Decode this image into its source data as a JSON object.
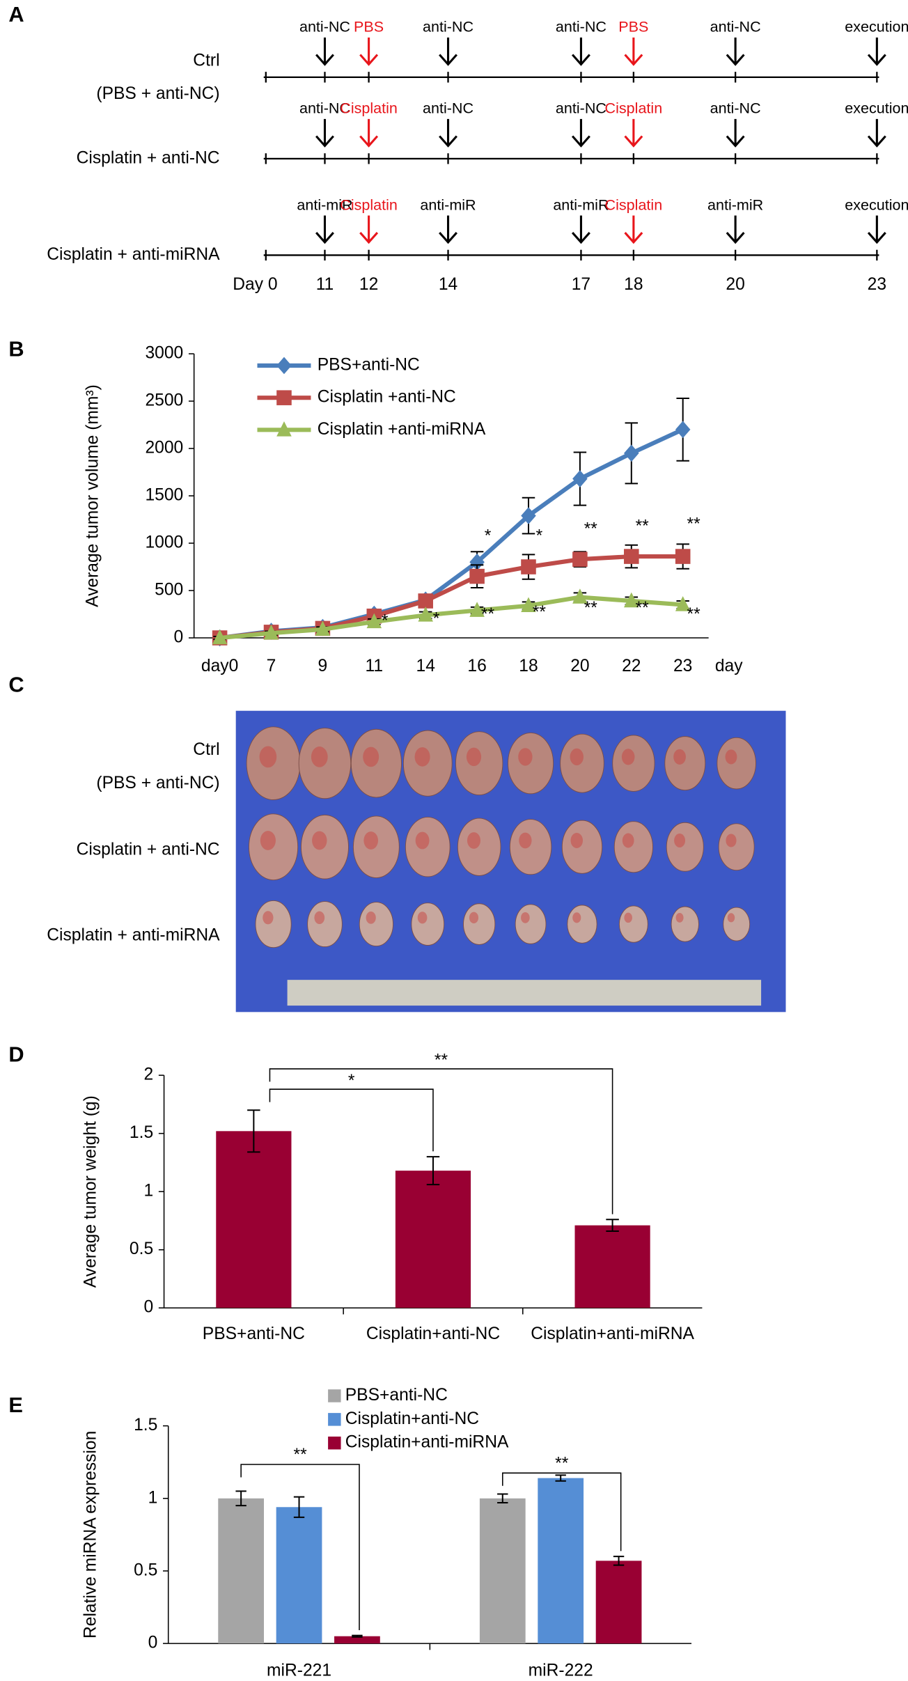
{
  "panel_labels": [
    "A",
    "B",
    "C",
    "D",
    "E"
  ],
  "timeline": {
    "rows": [
      {
        "label": [
          "Ctrl",
          "(PBS + anti-NC)"
        ],
        "events": [
          {
            "text": "anti-NC",
            "color": "#000000"
          },
          {
            "text": "PBS",
            "color": "#e8151b"
          },
          {
            "text": "anti-NC",
            "color": "#000000"
          },
          {
            "text": "anti-NC",
            "color": "#000000"
          },
          {
            "text": "PBS",
            "color": "#e8151b"
          },
          {
            "text": "anti-NC",
            "color": "#000000"
          },
          {
            "text": "execution",
            "color": "#000000"
          }
        ]
      },
      {
        "label": [
          "Cisplatin + anti-NC"
        ],
        "events": [
          {
            "text": "anti-NC",
            "color": "#000000"
          },
          {
            "text": "Cisplatin",
            "color": "#e8151b"
          },
          {
            "text": "anti-NC",
            "color": "#000000"
          },
          {
            "text": "anti-NC",
            "color": "#000000"
          },
          {
            "text": "Cisplatin",
            "color": "#e8151b"
          },
          {
            "text": "anti-NC",
            "color": "#000000"
          },
          {
            "text": "execution",
            "color": "#000000"
          }
        ]
      },
      {
        "label": [
          "Cisplatin + anti-miRNA"
        ],
        "events": [
          {
            "text": "anti-miR",
            "color": "#000000"
          },
          {
            "text": "Cisplatin",
            "color": "#e8151b"
          },
          {
            "text": "anti-miR",
            "color": "#000000"
          },
          {
            "text": "anti-miR",
            "color": "#000000"
          },
          {
            "text": "Cisplatin",
            "color": "#e8151b"
          },
          {
            "text": "anti-miR",
            "color": "#000000"
          },
          {
            "text": "execution",
            "color": "#000000"
          }
        ]
      }
    ],
    "day_labels": [
      "Day 0",
      "11",
      "12",
      "14",
      "17",
      "18",
      "20",
      "23"
    ]
  },
  "photo": {
    "row_labels": [
      [
        "Ctrl",
        "(PBS + anti-NC)"
      ],
      [
        "Cisplatin + anti-NC"
      ],
      [
        "Cisplatin + anti-miRNA"
      ]
    ]
  },
  "chart_data": [
    {
      "type": "line",
      "y_label": "Average tumor volume (mm³)",
      "x_label": "day",
      "categories": [
        "day0",
        "7",
        "9",
        "11",
        "14",
        "16",
        "18",
        "20",
        "22",
        "23"
      ],
      "series": [
        {
          "name": "PBS+anti-NC",
          "color": "#4a7ebb",
          "marker": "diamond",
          "values": [
            0,
            70,
            110,
            250,
            400,
            800,
            1290,
            1680,
            1950,
            2200
          ],
          "errors": [
            20,
            25,
            30,
            40,
            50,
            110,
            190,
            280,
            320,
            330
          ]
        },
        {
          "name": "Cisplatin +anti-NC",
          "color": "#be4b48",
          "marker": "square",
          "values": [
            0,
            60,
            100,
            230,
            390,
            650,
            750,
            830,
            860,
            860
          ],
          "errors": [
            20,
            25,
            30,
            40,
            50,
            120,
            130,
            80,
            120,
            130
          ]
        },
        {
          "name": "Cisplatin +anti-miRNA",
          "color": "#9bbb59",
          "marker": "triangle",
          "values": [
            0,
            50,
            90,
            170,
            240,
            290,
            340,
            430,
            390,
            350
          ],
          "errors": [
            15,
            20,
            25,
            30,
            35,
            35,
            40,
            45,
            40,
            40
          ]
        }
      ],
      "ylim": [
        0,
        3000
      ],
      "yticks": [
        0,
        500,
        1000,
        1500,
        2000,
        2500,
        3000
      ],
      "legend": "upper left",
      "annotations": [
        {
          "text": "*",
          "x": "16",
          "y": 1065
        },
        {
          "text": "*",
          "x": "18",
          "y": 1065
        },
        {
          "text": "**",
          "x": "20",
          "y": 1140
        },
        {
          "text": "**",
          "x": "22",
          "y": 1170
        },
        {
          "text": "**",
          "x": "23",
          "y": 1190
        },
        {
          "text": "*",
          "x": "11",
          "y": 170
        },
        {
          "text": "*",
          "x": "14",
          "y": 190
        },
        {
          "text": "**",
          "x": "16",
          "y": 240
        },
        {
          "text": "**",
          "x": "18",
          "y": 260
        },
        {
          "text": "**",
          "x": "20",
          "y": 305
        },
        {
          "text": "**",
          "x": "22",
          "y": 305
        },
        {
          "text": "**",
          "x": "23",
          "y": 240
        }
      ]
    },
    {
      "type": "bar",
      "y_label": "Average  tumor weight (g)",
      "categories": [
        "PBS+anti-NC",
        "Cisplatin+anti-NC",
        "Cisplatin+anti-miRNA"
      ],
      "values": [
        1.52,
        1.18,
        0.71
      ],
      "errors": [
        0.18,
        0.12,
        0.05
      ],
      "color": "#990033",
      "ylim": [
        0,
        2
      ],
      "yticks": [
        0,
        0.5,
        1,
        1.5,
        2
      ],
      "brackets": [
        {
          "from": 0,
          "to": 1,
          "text": "*"
        },
        {
          "from": 0,
          "to": 2,
          "text": "**"
        }
      ]
    },
    {
      "type": "grouped_bar",
      "y_label": "Relative miRNA expression",
      "categories": [
        "miR-221",
        "miR-222"
      ],
      "series": [
        {
          "name": "PBS+anti-NC",
          "color": "#a5a5a5",
          "values": [
            1.0,
            1.0
          ],
          "errors": [
            0.05,
            0.03
          ]
        },
        {
          "name": "Cisplatin+anti-NC",
          "color": "#558ed5",
          "values": [
            0.94,
            1.14
          ],
          "errors": [
            0.07,
            0.02
          ]
        },
        {
          "name": "Cisplatin+anti-miRNA",
          "color": "#990033",
          "values": [
            0.05,
            0.57
          ],
          "errors": [
            0.005,
            0.03
          ]
        }
      ],
      "ylim": [
        0,
        1.5
      ],
      "yticks": [
        0,
        0.5,
        1,
        1.5
      ],
      "legend": "upper center",
      "brackets": [
        {
          "category": 0,
          "from": 0,
          "to": 2,
          "text": "**"
        },
        {
          "category": 1,
          "from": 0,
          "to": 2,
          "text": "**"
        }
      ]
    }
  ]
}
